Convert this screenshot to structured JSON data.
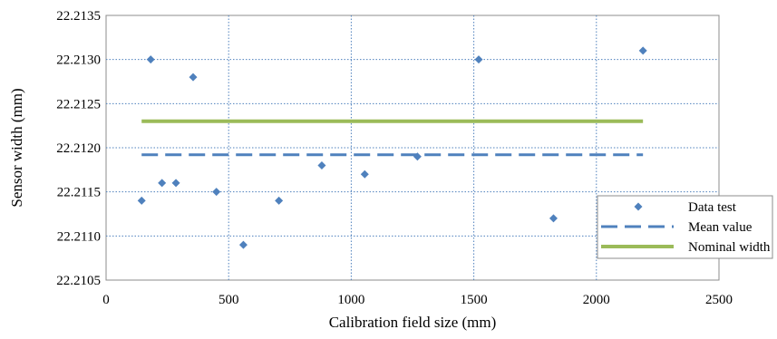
{
  "chart_data": {
    "type": "scatter",
    "title": "",
    "xlabel": "Calibration field size (mm)",
    "ylabel": "Sensor width (mm)",
    "xlim": [
      0,
      2500
    ],
    "ylim": [
      22.2105,
      22.2135
    ],
    "x_ticks": [
      "0",
      "500",
      "1000",
      "1500",
      "2000",
      "2500"
    ],
    "y_ticks": [
      "22.2105",
      "22.2110",
      "22.2115",
      "22.2120",
      "22.2125",
      "22.2130",
      "22.2135"
    ],
    "grid": true,
    "legend_position": "right",
    "series": [
      {
        "name": "Data test",
        "kind": "scatter",
        "marker": "diamond",
        "color": "#4f81bd",
        "points": [
          [
            145,
            22.2114
          ],
          [
            182,
            22.213
          ],
          [
            228,
            22.2116
          ],
          [
            285,
            22.2116
          ],
          [
            355,
            22.2128
          ],
          [
            450,
            22.2115
          ],
          [
            560,
            22.2109
          ],
          [
            705,
            22.2114
          ],
          [
            880,
            22.2118
          ],
          [
            1055,
            22.2117
          ],
          [
            1270,
            22.2119
          ],
          [
            1520,
            22.213
          ],
          [
            1825,
            22.2112
          ],
          [
            2190,
            22.2131
          ]
        ]
      },
      {
        "name": "Mean value",
        "kind": "line",
        "style": "dashed",
        "color": "#4f81bd",
        "points": [
          [
            145,
            22.21192
          ],
          [
            2190,
            22.21192
          ]
        ]
      },
      {
        "name": "Nominal width",
        "kind": "line",
        "style": "solid",
        "color": "#9bbb59",
        "points": [
          [
            145,
            22.2123
          ],
          [
            2190,
            22.2123
          ]
        ]
      }
    ]
  }
}
